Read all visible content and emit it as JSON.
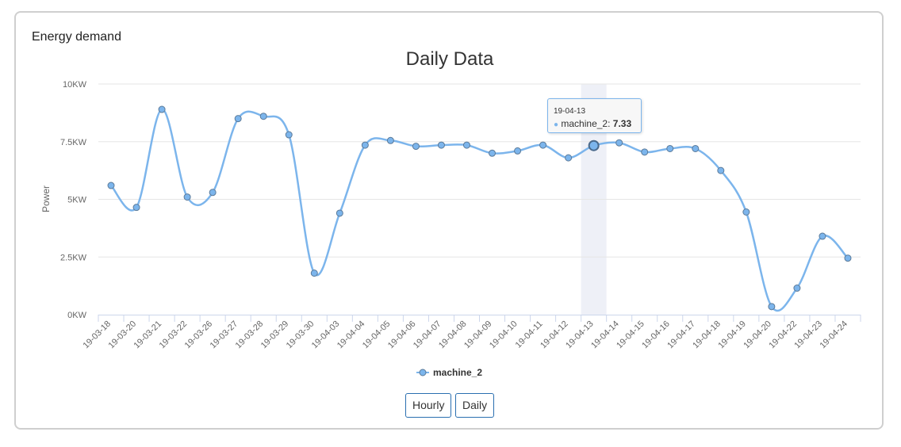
{
  "card": {
    "title": "Energy demand"
  },
  "buttons": {
    "hourly": "Hourly",
    "daily": "Daily"
  },
  "tooltip": {
    "date": "19-04-13",
    "series": "machine_2",
    "value": "7.33"
  },
  "colors": {
    "series": "#7cb5ec",
    "marker": "#7cb5ec",
    "highlight": "#eef0f7",
    "grid": "#e6e6e6"
  },
  "chart_data": {
    "type": "line",
    "title": "Daily Data",
    "xlabel": "",
    "ylabel": "Power",
    "ylim": [
      0,
      10
    ],
    "yticks": [
      "0KW",
      "2.5KW",
      "5KW",
      "7.5KW",
      "10KW"
    ],
    "grid": true,
    "legend": "bottom-center",
    "categories": [
      "19-03-18",
      "19-03-20",
      "19-03-21",
      "19-03-22",
      "19-03-26",
      "19-03-27",
      "19-03-28",
      "19-03-29",
      "19-03-30",
      "19-04-03",
      "19-04-04",
      "19-04-05",
      "19-04-06",
      "19-04-07",
      "19-04-08",
      "19-04-09",
      "19-04-10",
      "19-04-11",
      "19-04-12",
      "19-04-13",
      "19-04-14",
      "19-04-15",
      "19-04-16",
      "19-04-17",
      "19-04-18",
      "19-04-19",
      "19-04-20",
      "19-04-22",
      "19-04-23",
      "19-04-24"
    ],
    "series": [
      {
        "name": "machine_2",
        "values": [
          5.6,
          4.65,
          8.9,
          5.1,
          5.3,
          8.5,
          8.6,
          7.8,
          1.8,
          4.4,
          7.35,
          7.55,
          7.3,
          7.35,
          7.35,
          7.0,
          7.1,
          7.35,
          6.8,
          7.33,
          7.45,
          7.05,
          7.2,
          7.2,
          6.25,
          4.45,
          0.35,
          1.15,
          3.4,
          2.45
        ]
      }
    ],
    "highlight_category": "19-04-13"
  }
}
